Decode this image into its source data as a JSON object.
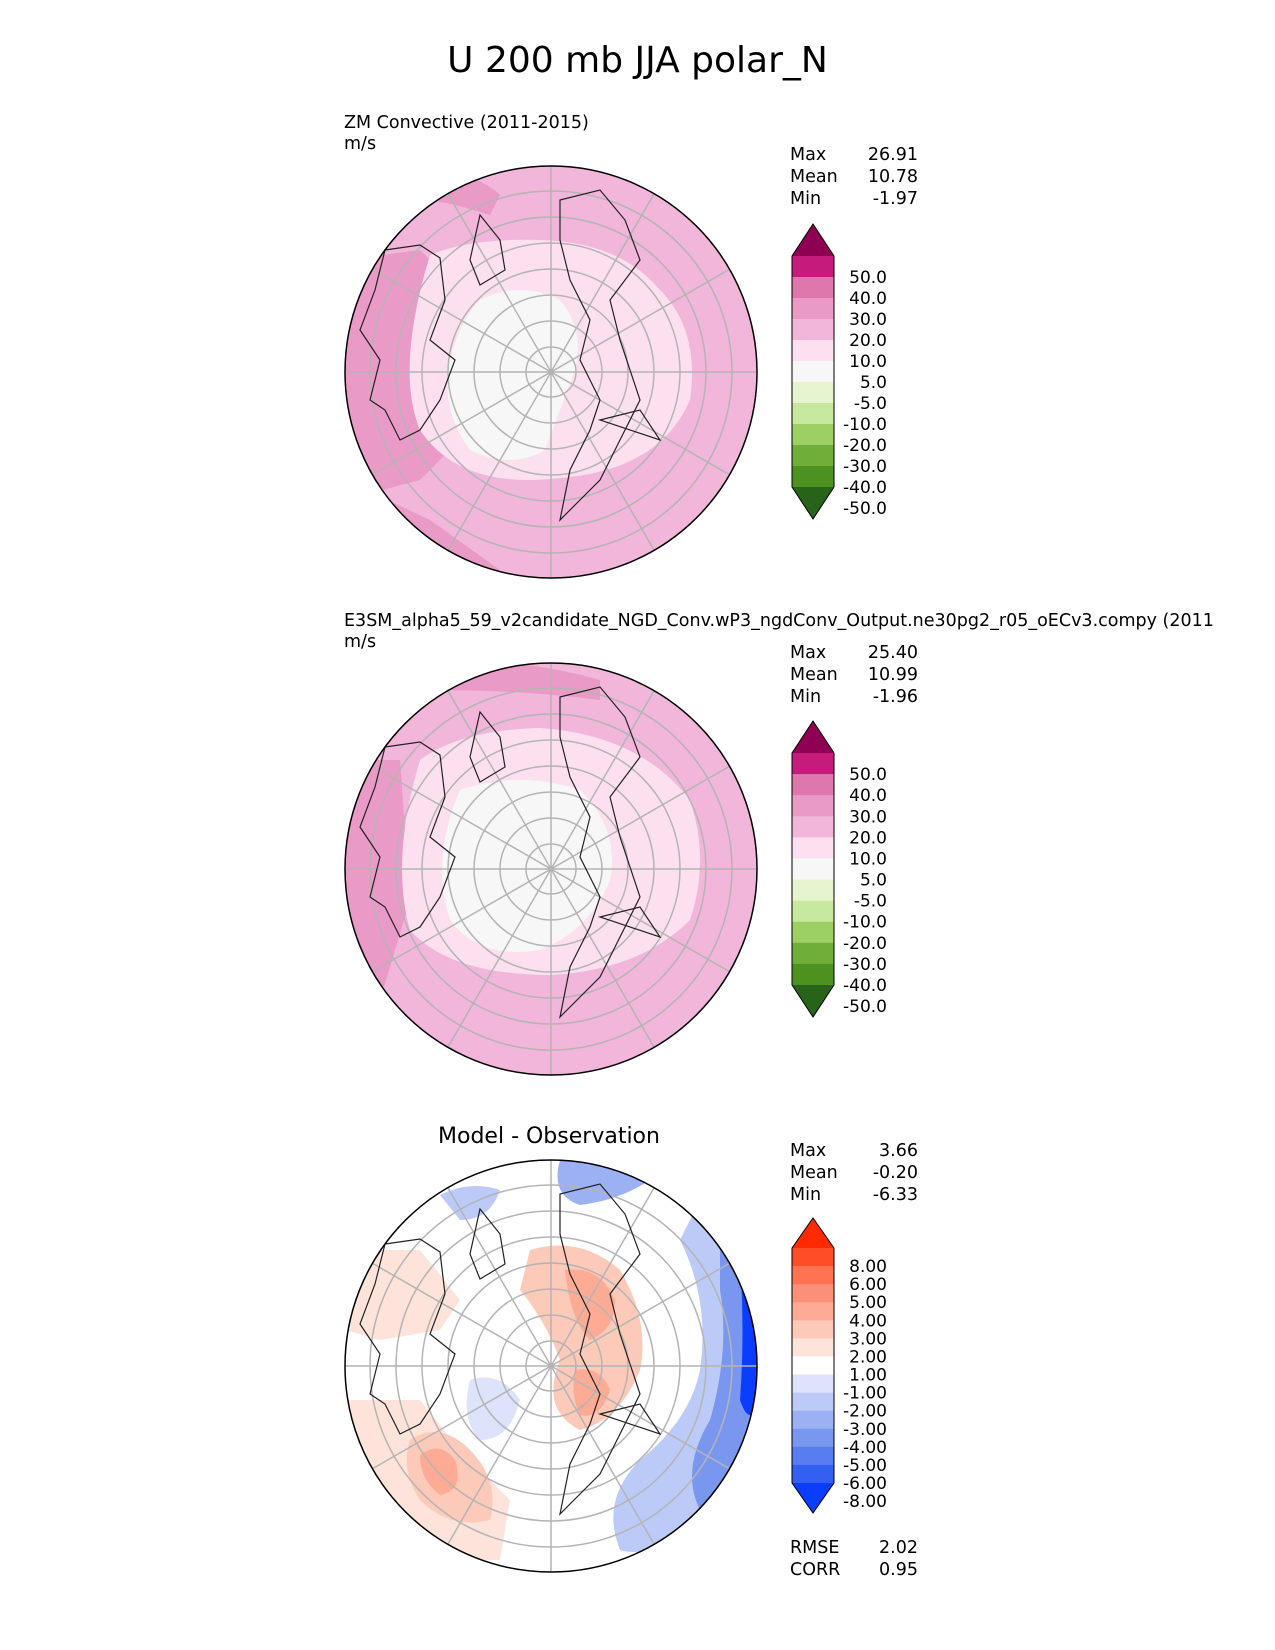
{
  "figure_title": "U 200 mb JJA polar_N",
  "chart_data": [
    {
      "type": "polar_contour_map",
      "panel": "test",
      "title": "ZM Convective (2011-2015)",
      "units": "m/s",
      "stats": {
        "Max": "26.91",
        "Mean": "10.78",
        "Min": "-1.97"
      },
      "colorbar_levels": [
        "50.0",
        "40.0",
        "30.0",
        "20.0",
        "10.0",
        "5.0",
        "-5.0",
        "-10.0",
        "-20.0",
        "-30.0",
        "-40.0",
        "-50.0"
      ],
      "colorbar_colors": [
        "#8e0152",
        "#c51b7d",
        "#de77ae",
        "#ea9ac6",
        "#f1b6da",
        "#fde0ef",
        "#f7f7f7",
        "#e6f5d0",
        "#c7e99e",
        "#9cd065",
        "#6fae38",
        "#4d9221",
        "#276419"
      ]
    },
    {
      "type": "polar_contour_map",
      "panel": "reference",
      "title": "E3SM_alpha5_59_v2candidate_NGD_Conv.wP3_ngdConv_Output.ne30pg2_r05_oECv3.compy (2011",
      "units": "m/s",
      "stats": {
        "Max": "25.40",
        "Mean": "10.99",
        "Min": "-1.96"
      },
      "colorbar_levels": [
        "50.0",
        "40.0",
        "30.0",
        "20.0",
        "10.0",
        "5.0",
        "-5.0",
        "-10.0",
        "-20.0",
        "-30.0",
        "-40.0",
        "-50.0"
      ],
      "colorbar_colors": [
        "#8e0152",
        "#c51b7d",
        "#de77ae",
        "#ea9ac6",
        "#f1b6da",
        "#fde0ef",
        "#f7f7f7",
        "#e6f5d0",
        "#c7e99e",
        "#9cd065",
        "#6fae38",
        "#4d9221",
        "#276419"
      ]
    },
    {
      "type": "polar_contour_map",
      "panel": "difference",
      "title": "Model - Observation",
      "stats": {
        "Max": "3.66",
        "Mean": "-0.20",
        "Min": "-6.33"
      },
      "metrics": {
        "RMSE": "2.02",
        "CORR": "0.95"
      },
      "colorbar_levels": [
        "8.00",
        "6.00",
        "5.00",
        "4.00",
        "3.00",
        "2.00",
        "1.00",
        "-1.00",
        "-2.00",
        "-3.00",
        "-4.00",
        "-5.00",
        "-6.00",
        "-8.00"
      ],
      "colorbar_colors": [
        "#ff2a00",
        "#ff4d26",
        "#ff7352",
        "#fc8f77",
        "#fdab94",
        "#fdc9b8",
        "#fde3da",
        "#ffffff",
        "#dde3fb",
        "#bccaf7",
        "#9bb1f4",
        "#7a97f0",
        "#577df0",
        "#3460f2",
        "#0a3dff"
      ]
    }
  ]
}
